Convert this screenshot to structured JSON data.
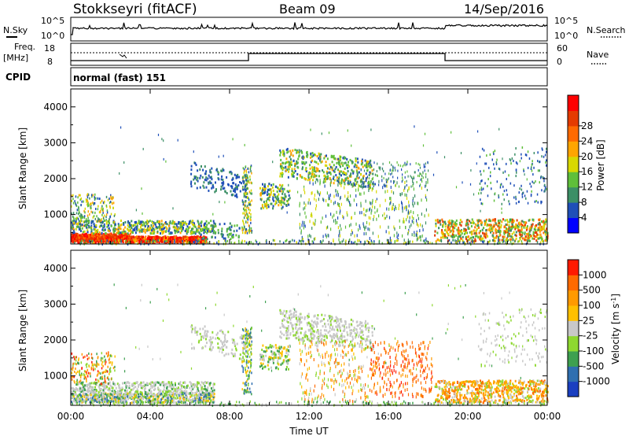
{
  "header": {
    "station": "Stokkseyri (fitACF)",
    "beam": "Beam 09",
    "date": "14/Sep/2016"
  },
  "noise_panel": {
    "left_label": "N.Sky",
    "right_label": "N.Search",
    "left_ticks": [
      "10^5",
      "10^0"
    ],
    "right_ticks": [
      "10^5",
      "10^0"
    ]
  },
  "freq_panel": {
    "left_label_line1": "Freq.",
    "left_label_line2": "[MHz]",
    "right_label": "Nave",
    "left_ticks": [
      "18",
      "8"
    ],
    "right_ticks": [
      "60",
      "0"
    ]
  },
  "cpid": {
    "label": "CPID",
    "program": "normal (fast) 151"
  },
  "colors": {
    "power_scale": [
      "#0000ff",
      "#1f4fb8",
      "#3c8f66",
      "#5fbf3a",
      "#d8d800",
      "#ffa500",
      "#ff6a00",
      "#e53b00",
      "#ff0000"
    ],
    "velocity_scale": [
      "#ff1a00",
      "#ff6a00",
      "#ff9a00",
      "#ffc000",
      "#c8c8c8",
      "#8ed830",
      "#3ea050",
      "#2f6fb0",
      "#1a3fc0"
    ]
  },
  "chart_data": [
    {
      "type": "heatmap",
      "panel": "power",
      "ylabel": "Slant Range [km]",
      "ylim": [
        180,
        4500
      ],
      "y_ticks": [
        "1000",
        "2000",
        "3000",
        "4000"
      ],
      "colorbar_label": "Power [dB]",
      "colorbar_ticks": [
        "4",
        "8",
        "12",
        "16",
        "20",
        "24",
        "28"
      ],
      "colorbar_range": [
        0,
        30
      ]
    },
    {
      "type": "heatmap",
      "panel": "velocity",
      "ylabel": "Slant Range [km]",
      "ylim": [
        180,
        4500
      ],
      "y_ticks": [
        "1000",
        "2000",
        "3000",
        "4000"
      ],
      "colorbar_label": "Velocity [m s^-1]",
      "colorbar_ticks": [
        "1000",
        "500",
        "100",
        "25",
        "-25",
        "-100",
        "-500",
        "-1000"
      ],
      "x_ticks": [
        "00:00",
        "04:00",
        "08:00",
        "12:00",
        "16:00",
        "20:00",
        "00:00"
      ],
      "xlabel": "Time UT",
      "xlim_hours": [
        0,
        24
      ]
    }
  ]
}
